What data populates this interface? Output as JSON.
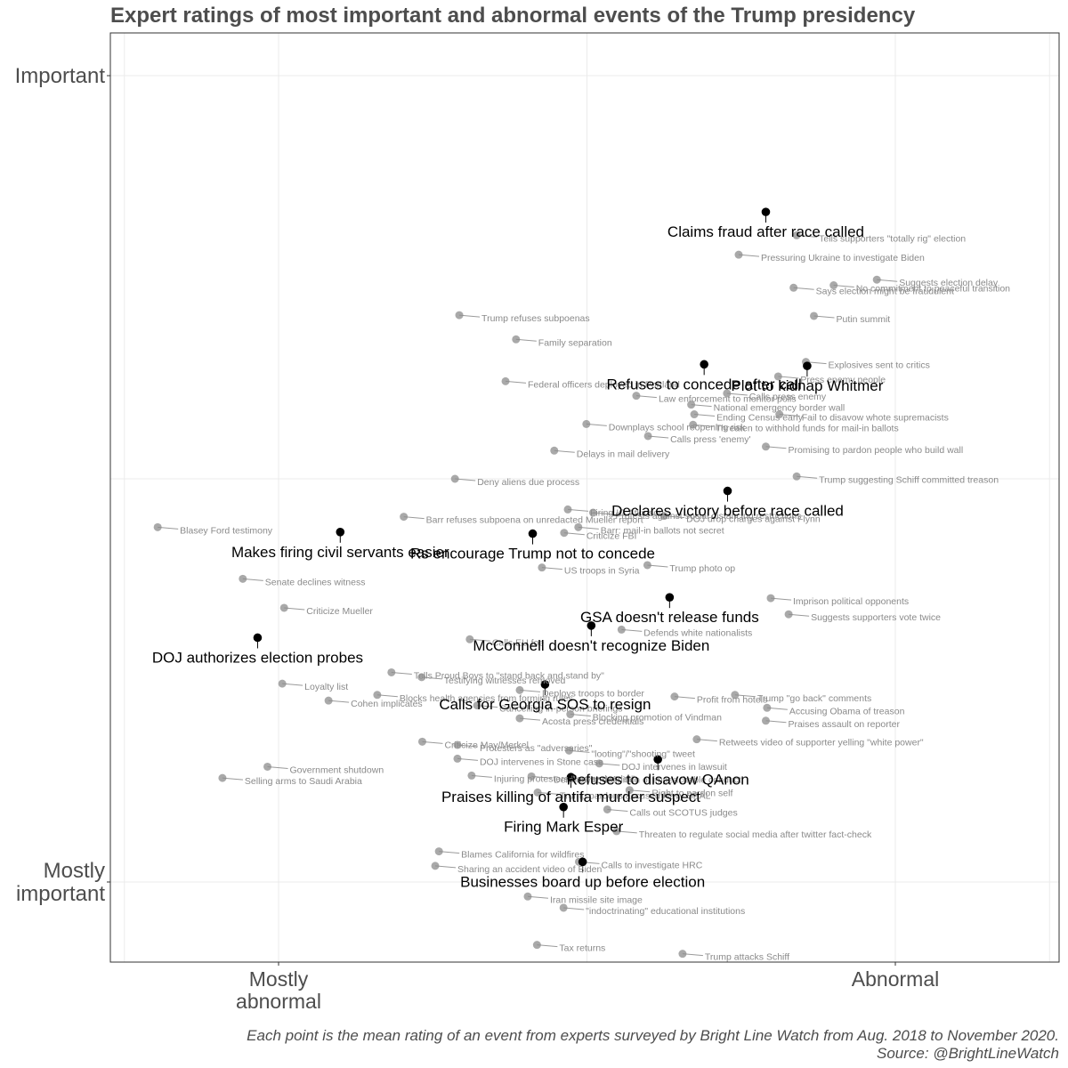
{
  "chart_data": {
    "type": "scatter",
    "title": "Expert ratings of most important and abnormal events of the Trump presidency",
    "xlabel": "",
    "ylabel": "",
    "xlim": [
      -0.27,
      1.27
    ],
    "ylim": [
      -0.1,
      1.06
    ],
    "x_ticks": [
      {
        "value": 0,
        "label": "Mostly\nabnormal"
      },
      {
        "value": 1,
        "label": "Abnormal"
      }
    ],
    "y_ticks": [
      {
        "value": 0,
        "label": "Mostly\nimportant"
      },
      {
        "value": 1,
        "label": "Important"
      }
    ],
    "grid": true,
    "caption": [
      "Each point is the mean rating of an event from experts surveyed by Bright Line Watch from Aug. 2018 to November 2020.",
      "Source: @BrightLineWatch"
    ],
    "highlight_color": "#000000",
    "background_color": "#8c8c8c",
    "series": [
      {
        "name": "highlighted",
        "points": [
          {
            "label": "Claims fraud after race called",
            "x": 0.79,
            "y": 0.831
          },
          {
            "label": "Refuses to concede after call",
            "x": 0.69,
            "y": 0.642
          },
          {
            "label": "Plot to kidnap Whitmer",
            "x": 0.857,
            "y": 0.64
          },
          {
            "label": "Declares victory before race called",
            "x": 0.728,
            "y": 0.485
          },
          {
            "label": "Makes firing civil servants easier",
            "x": 0.1,
            "y": 0.434
          },
          {
            "label": "Rs encourage Trump not to concede",
            "x": 0.412,
            "y": 0.432
          },
          {
            "label": "GSA doesn't release funds",
            "x": 0.634,
            "y": 0.353
          },
          {
            "label": "McConnell doesn't recognize Biden",
            "x": 0.507,
            "y": 0.318
          },
          {
            "label": "DOJ authorizes election probes",
            "x": -0.034,
            "y": 0.303
          },
          {
            "label": "Calls for Georgia SOS to resign",
            "x": 0.432,
            "y": 0.245
          },
          {
            "label": "Refuses to disavow QAnon",
            "x": 0.615,
            "y": 0.152
          },
          {
            "label": "Praises killing of antifa murder suspect",
            "x": 0.474,
            "y": 0.13
          },
          {
            "label": "Firing Mark Esper",
            "x": 0.462,
            "y": 0.093
          },
          {
            "label": "Businesses board up before election",
            "x": 0.493,
            "y": 0.025
          }
        ]
      },
      {
        "name": "other",
        "points": [
          {
            "label": "Tells supporters \"totally rig\" election",
            "x": 0.84,
            "y": 0.802
          },
          {
            "label": "Pressuring Ukraine to investigate Biden",
            "x": 0.746,
            "y": 0.778
          },
          {
            "label": "Suggests election delay",
            "x": 0.97,
            "y": 0.747
          },
          {
            "label": "No commitment to peaceful transition",
            "x": 0.9,
            "y": 0.74
          },
          {
            "label": "Says election might be fraudulent",
            "x": 0.835,
            "y": 0.737
          },
          {
            "label": "Putin summit",
            "x": 0.868,
            "y": 0.702
          },
          {
            "label": "Trump refuses subpoenas",
            "x": 0.293,
            "y": 0.703
          },
          {
            "label": "Family separation",
            "x": 0.385,
            "y": 0.673
          },
          {
            "label": "Explosives sent to critics",
            "x": 0.855,
            "y": 0.645
          },
          {
            "label": "Press enemy people",
            "x": 0.81,
            "y": 0.627
          },
          {
            "label": "Federal officers deployed in Portland",
            "x": 0.368,
            "y": 0.621
          },
          {
            "label": "Law enforcement to monitor polls",
            "x": 0.58,
            "y": 0.603
          },
          {
            "label": "Calls press enemy",
            "x": 0.727,
            "y": 0.606
          },
          {
            "label": "National emergency border wall",
            "x": 0.669,
            "y": 0.592
          },
          {
            "label": "Fail to disavow whote supremacists",
            "x": 0.812,
            "y": 0.58
          },
          {
            "label": "Ending Census early",
            "x": 0.674,
            "y": 0.58
          },
          {
            "label": "Threaten to withhold funds for mail-in ballots",
            "x": 0.672,
            "y": 0.567
          },
          {
            "label": "Downplays school reopening risk",
            "x": 0.499,
            "y": 0.568
          },
          {
            "label": "Calls press 'enemy'",
            "x": 0.599,
            "y": 0.553
          },
          {
            "label": "Promising to pardon people who build wall",
            "x": 0.79,
            "y": 0.54
          },
          {
            "label": "Delays in mail delivery",
            "x": 0.447,
            "y": 0.535
          },
          {
            "label": "Trump suggesting Schiff committed treason",
            "x": 0.84,
            "y": 0.503
          },
          {
            "label": "Deny aliens due process",
            "x": 0.286,
            "y": 0.5
          },
          {
            "label": "Firing IG Atkinson",
            "x": 0.469,
            "y": 0.462
          },
          {
            "label": "Protests against social distancing restrictions",
            "x": 0.51,
            "y": 0.458
          },
          {
            "label": "Blasey Ford testimony",
            "x": -0.196,
            "y": 0.44
          },
          {
            "label": "Barr refuses subpoena on unredacted Mueller report",
            "x": 0.203,
            "y": 0.453
          },
          {
            "label": "DOJ drop charges against Flynn",
            "x": 0.625,
            "y": 0.454
          },
          {
            "label": "Barr: mail-in ballots not secret",
            "x": 0.486,
            "y": 0.44
          },
          {
            "label": "Criticize FBI",
            "x": 0.463,
            "y": 0.433
          },
          {
            "label": "Trump photo op",
            "x": 0.598,
            "y": 0.393
          },
          {
            "label": "US troops in Syria",
            "x": 0.427,
            "y": 0.39
          },
          {
            "label": "Senate declines witness",
            "x": -0.058,
            "y": 0.376
          },
          {
            "label": "Criticize Mueller",
            "x": 0.009,
            "y": 0.34
          },
          {
            "label": "Imprison political opponents",
            "x": 0.798,
            "y": 0.352
          },
          {
            "label": "Suggests supporters vote twice",
            "x": 0.827,
            "y": 0.332
          },
          {
            "label": "Defends white nationalists",
            "x": 0.556,
            "y": 0.313
          },
          {
            "label": "Calls EU foe",
            "x": 0.31,
            "y": 0.301
          },
          {
            "label": "Tells Proud Boys to \"stand back and stand by\"",
            "x": 0.183,
            "y": 0.26
          },
          {
            "label": "Testifying witnesses removed",
            "x": 0.232,
            "y": 0.254
          },
          {
            "label": "Loyalty list",
            "x": 0.006,
            "y": 0.246
          },
          {
            "label": "Deploys troops to border",
            "x": 0.391,
            "y": 0.238
          },
          {
            "label": "Blocks health agencies from forming rules",
            "x": 0.16,
            "y": 0.232
          },
          {
            "label": "Cancelling in-person briefings",
            "x": 0.322,
            "y": 0.219
          },
          {
            "label": "Cohen implicates",
            "x": 0.081,
            "y": 0.225
          },
          {
            "label": "Profit from hotels",
            "x": 0.642,
            "y": 0.23
          },
          {
            "label": "Trump \"go back\" comments",
            "x": 0.74,
            "y": 0.232
          },
          {
            "label": "Accusing Obama of treason",
            "x": 0.792,
            "y": 0.216
          },
          {
            "label": "Blocking promotion of Vindman",
            "x": 0.473,
            "y": 0.208
          },
          {
            "label": "Acosta press credentials",
            "x": 0.391,
            "y": 0.203
          },
          {
            "label": "Praises assault on reporter",
            "x": 0.79,
            "y": 0.2
          },
          {
            "label": "Retweets video of supporter yelling \"white power\"",
            "x": 0.678,
            "y": 0.177
          },
          {
            "label": "Government shutdown",
            "x": -0.018,
            "y": 0.143
          },
          {
            "label": "Selling arms to Saudi Arabia",
            "x": -0.091,
            "y": 0.129
          },
          {
            "label": "Criticize May/Merkel",
            "x": 0.233,
            "y": 0.174
          },
          {
            "label": "Protesters as \"adversaries\"",
            "x": 0.29,
            "y": 0.17
          },
          {
            "label": "\"looting\"/\"shooting\" tweet",
            "x": 0.471,
            "y": 0.163
          },
          {
            "label": "DOJ intervenes in lawsuit",
            "x": 0.52,
            "y": 0.147
          },
          {
            "label": "Dershowitz definition of impeachable conduct",
            "x": 0.41,
            "y": 0.131
          },
          {
            "label": "DOJ intervenes in Stone case",
            "x": 0.29,
            "y": 0.153
          },
          {
            "label": "Injuring protesters \"law and order\"",
            "x": 0.313,
            "y": 0.132
          },
          {
            "label": "Right to pardon self",
            "x": 0.569,
            "y": 0.114
          },
          {
            "label": "Calls out SCOTUS judges",
            "x": 0.533,
            "y": 0.09
          },
          {
            "label": "Trump pardons accused Navy SEAL",
            "x": 0.42,
            "y": 0.111
          },
          {
            "label": "Threaten to regulate social media after twitter fact-check",
            "x": 0.548,
            "y": 0.063
          },
          {
            "label": "Blames California for wildfires",
            "x": 0.26,
            "y": 0.038
          },
          {
            "label": "Sharing an accident video of Biden",
            "x": 0.254,
            "y": 0.02
          },
          {
            "label": "Calls to investigate HRC",
            "x": 0.487,
            "y": 0.025
          },
          {
            "label": "Iran missile site image",
            "x": 0.404,
            "y": -0.018
          },
          {
            "label": "\"indoctrinating\" educational institutions",
            "x": 0.462,
            "y": -0.032
          },
          {
            "label": "Tax returns",
            "x": 0.419,
            "y": -0.078
          },
          {
            "label": "Trump attacks Schiff",
            "x": 0.655,
            "y": -0.089
          }
        ]
      }
    ]
  }
}
